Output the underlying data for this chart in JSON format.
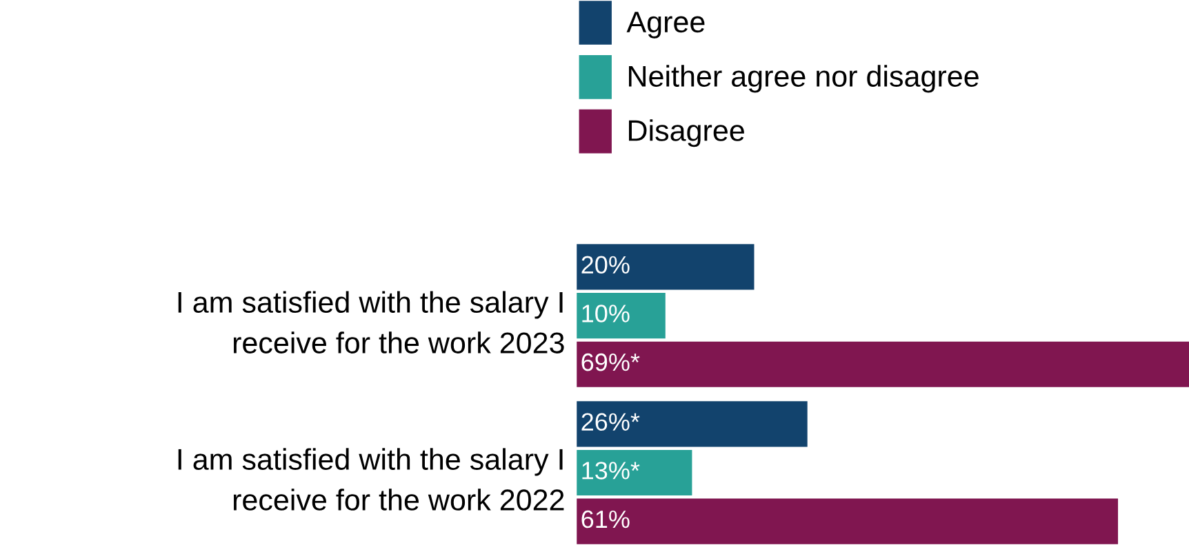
{
  "chart_data": {
    "type": "bar",
    "orientation": "horizontal",
    "relative": false,
    "legend": "top",
    "categories": [
      "I am satisfied with the salary I\nreceive for the work 2023",
      "I am satisfied with the salary I\nreceive for the work 2022"
    ],
    "series": [
      {
        "name": "Agree",
        "color": "#12436d",
        "values": [
          20,
          26
        ],
        "value_labels": [
          "20%",
          "26%*"
        ]
      },
      {
        "name": "Neither agree nor disagree",
        "color": "#28a197",
        "values": [
          10,
          13
        ],
        "value_labels": [
          "10%",
          "13%*"
        ]
      },
      {
        "name": "Disagree",
        "color": "#801650",
        "values": [
          69,
          61
        ],
        "value_labels": [
          "69%*",
          "61%"
        ]
      }
    ]
  }
}
